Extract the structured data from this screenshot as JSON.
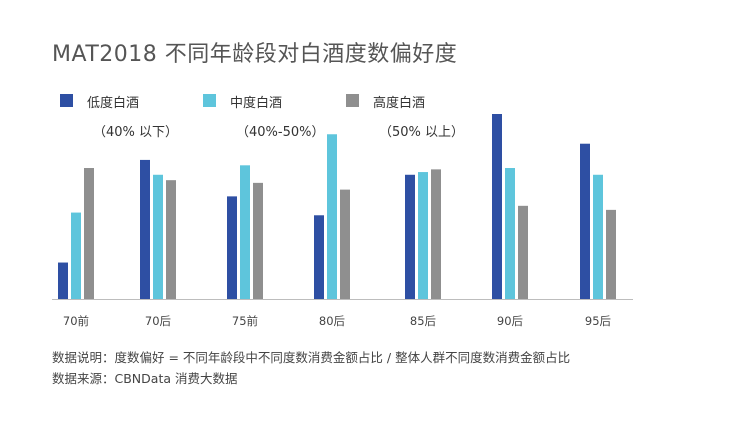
{
  "title": "MAT2018 不同年龄段对白酒度数偏好度",
  "legend": [
    {
      "name": "低度白酒",
      "range": "（40% 以下）",
      "color": "#2e4fa3"
    },
    {
      "name": "中度白酒",
      "range": "（40%-50%）",
      "color": "#5ec5dc"
    },
    {
      "name": "高度白酒",
      "range": "（50% 以上）",
      "color": "#8f8f8f"
    }
  ],
  "footnotes": {
    "note": "数据说明：度数偏好 = 不同年龄段中不同度数消费金额占比 / 整体人群不同度数消费金额占比",
    "source": "数据来源：CBNData 消费大数据"
  },
  "chart_data": {
    "type": "bar",
    "title": "MAT2018 不同年龄段对白酒度数偏好度",
    "categories": [
      "70前",
      "70后",
      "75前",
      "80后",
      "85后",
      "90后",
      "95后"
    ],
    "series": [
      {
        "name": "低度白酒",
        "color": "#2e4fa3",
        "values": [
          0.27,
          1.03,
          0.76,
          0.62,
          0.92,
          1.37,
          1.15
        ]
      },
      {
        "name": "中度白酒",
        "color": "#5ec5dc",
        "values": [
          0.64,
          0.92,
          0.99,
          1.22,
          0.94,
          0.97,
          0.92
        ]
      },
      {
        "name": "高度白酒",
        "color": "#8f8f8f",
        "values": [
          0.97,
          0.88,
          0.86,
          0.81,
          0.96,
          0.69,
          0.66
        ]
      }
    ],
    "ylim": [
      0,
      1.37
    ],
    "grid": false,
    "legend_position": "top-left"
  }
}
